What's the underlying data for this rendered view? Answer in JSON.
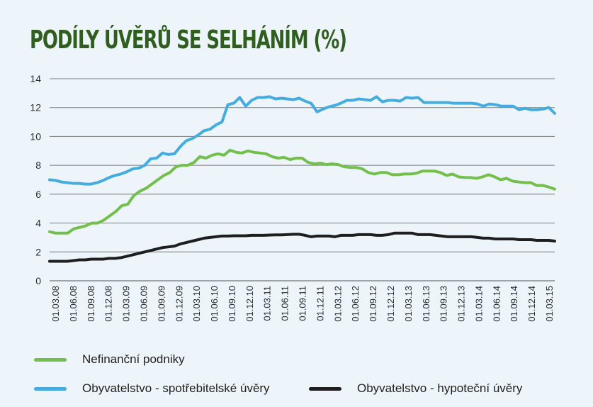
{
  "chart_data": {
    "type": "line",
    "title": "PODÍLY ÚVĚRŮ SE SELHÁNÍM (%)",
    "ylim": [
      0,
      14
    ],
    "yticks": [
      "0",
      "2",
      "4",
      "6",
      "8",
      "10",
      "12",
      "14"
    ],
    "grid": true,
    "legend_position": "bottom",
    "x_tick_labels": [
      "01.03.08",
      "01.06.08",
      "01.09.08",
      "01.12.08",
      "01.03.09",
      "01.06.09",
      "01.09.09",
      "01.12.09",
      "01.03.10",
      "01.06.10",
      "01.09.10",
      "01.12.10",
      "01.03.11",
      "01.06.11",
      "01.09.11",
      "01.12.11",
      "01.03.12",
      "01.06.12",
      "01.09.12",
      "01.12.12",
      "01.03.13",
      "01.06.13",
      "01.09.13",
      "01.12.13",
      "01.03.14",
      "01.06.14",
      "01.09.14",
      "01.12.14",
      "01.03.15"
    ],
    "series": [
      {
        "name": "Nefinanční podniky",
        "color": "#72c04b",
        "values": [
          3.4,
          3.3,
          3.3,
          3.3,
          3.6,
          3.7,
          3.8,
          4.0,
          4.0,
          4.2,
          4.5,
          4.8,
          5.2,
          5.3,
          5.9,
          6.2,
          6.4,
          6.7,
          7.0,
          7.3,
          7.5,
          7.9,
          8.0,
          8.0,
          8.2,
          8.6,
          8.5,
          8.7,
          8.8,
          8.7,
          9.05,
          8.9,
          8.85,
          9.0,
          8.9,
          8.85,
          8.8,
          8.6,
          8.5,
          8.55,
          8.4,
          8.5,
          8.5,
          8.2,
          8.1,
          8.15,
          8.05,
          8.1,
          8.05,
          7.9,
          7.85,
          7.85,
          7.75,
          7.5,
          7.4,
          7.5,
          7.5,
          7.35,
          7.35,
          7.4,
          7.4,
          7.45,
          7.6,
          7.6,
          7.6,
          7.5,
          7.3,
          7.4,
          7.2,
          7.15,
          7.15,
          7.1,
          7.2,
          7.35,
          7.2,
          7.0,
          7.1,
          6.9,
          6.85,
          6.8,
          6.8,
          6.6,
          6.6,
          6.5,
          6.35
        ]
      },
      {
        "name": "Obyvatelstvo - spotřebitelské úvěry",
        "color": "#45ace0",
        "values": [
          7.0,
          6.95,
          6.85,
          6.8,
          6.75,
          6.75,
          6.7,
          6.7,
          6.8,
          6.95,
          7.15,
          7.3,
          7.4,
          7.55,
          7.75,
          7.8,
          8.0,
          8.45,
          8.5,
          8.85,
          8.75,
          8.8,
          9.3,
          9.7,
          9.85,
          10.1,
          10.4,
          10.5,
          10.8,
          11.0,
          12.2,
          12.3,
          12.7,
          12.1,
          12.5,
          12.7,
          12.7,
          12.75,
          12.6,
          12.65,
          12.6,
          12.55,
          12.65,
          12.45,
          12.3,
          11.7,
          11.9,
          12.05,
          12.15,
          12.3,
          12.5,
          12.5,
          12.6,
          12.55,
          12.5,
          12.75,
          12.4,
          12.5,
          12.5,
          12.45,
          12.7,
          12.65,
          12.7,
          12.35,
          12.35,
          12.35,
          12.35,
          12.35,
          12.3,
          12.3,
          12.3,
          12.3,
          12.25,
          12.1,
          12.25,
          12.2,
          12.1,
          12.1,
          12.1,
          11.85,
          11.95,
          11.85,
          11.85,
          11.9,
          12.0,
          11.6
        ]
      },
      {
        "name": "Obyvatelstvo - hypoteční úvěry",
        "color": "#1e1e20",
        "values": [
          1.35,
          1.35,
          1.35,
          1.35,
          1.4,
          1.45,
          1.45,
          1.5,
          1.5,
          1.5,
          1.55,
          1.55,
          1.6,
          1.7,
          1.8,
          1.9,
          2.0,
          2.1,
          2.2,
          2.3,
          2.35,
          2.4,
          2.55,
          2.65,
          2.75,
          2.85,
          2.95,
          3.0,
          3.05,
          3.1,
          3.1,
          3.12,
          3.12,
          3.12,
          3.15,
          3.15,
          3.15,
          3.17,
          3.18,
          3.18,
          3.2,
          3.22,
          3.22,
          3.15,
          3.05,
          3.1,
          3.1,
          3.1,
          3.05,
          3.15,
          3.15,
          3.15,
          3.2,
          3.2,
          3.2,
          3.15,
          3.15,
          3.2,
          3.3,
          3.3,
          3.3,
          3.3,
          3.2,
          3.2,
          3.2,
          3.15,
          3.1,
          3.05,
          3.05,
          3.05,
          3.05,
          3.05,
          3.0,
          2.95,
          2.95,
          2.9,
          2.9,
          2.9,
          2.9,
          2.85,
          2.85,
          2.85,
          2.8,
          2.8,
          2.8,
          2.75
        ]
      }
    ]
  }
}
